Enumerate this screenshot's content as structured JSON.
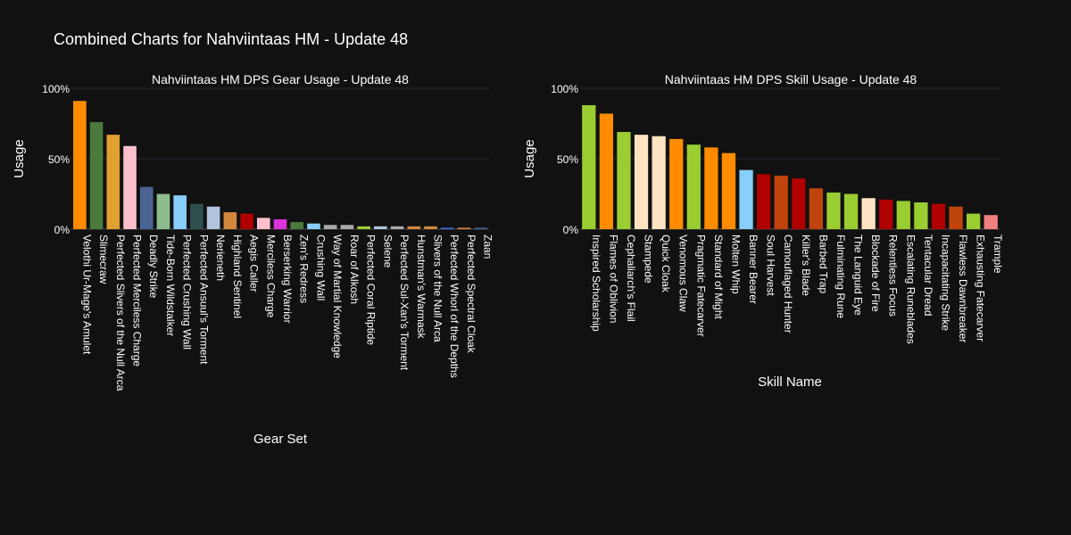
{
  "page_title": "Combined Charts for Nahviintaas HM - Update 48",
  "chart_data": [
    {
      "type": "bar",
      "title": "Nahviintaas HM DPS Gear Usage - Update 48",
      "xlabel": "Gear Set",
      "ylabel": "Usage",
      "ylim": [
        0,
        100
      ],
      "yticks": [
        0,
        50,
        100
      ],
      "ytick_labels": [
        "0%",
        "50%",
        "100%"
      ],
      "grid": true,
      "categories": [
        "Velothi Ur-Mage's Amulet",
        "Slimecraw",
        "Perfected Slivers of the Null Arca",
        "Perfected Merciless Charge",
        "Deadly Strike",
        "Tide-Born Wildstalker",
        "Perfected Crushing Wall",
        "Perfected Ansuul's Torment",
        "Nerieneth",
        "Highland Sentinel",
        "Aegis Caller",
        "Merciless Charge",
        "Berserking Warrior",
        "Zen's Redress",
        "Crushing Wall",
        "Way of Martial Knowledge",
        "Roar of Alkosh",
        "Perfected Coral Riptide",
        "Selene",
        "Perfected Sul-Xan's Torment",
        "Hunstman's Warmask",
        "Slivers of the Null Arca",
        "Perfected Whorl of the Depths",
        "Perfected Spectral Cloak",
        "Zaan"
      ],
      "values": [
        91,
        76,
        67,
        59,
        30,
        25,
        24,
        18,
        16,
        12,
        11,
        8,
        7,
        5,
        4,
        3,
        3,
        2,
        2,
        2,
        2,
        2,
        1,
        1,
        1
      ],
      "colors": [
        "#ff8c00",
        "#4a7a3d",
        "#e0a030",
        "#ffc0cb",
        "#4a6494",
        "#8fbc8f",
        "#87cefa",
        "#2f4f4f",
        "#b0c4de",
        "#d2873c",
        "#b00000",
        "#ffc0cb",
        "#da33da",
        "#4a7a3d",
        "#87cefa",
        "#a9a9a9",
        "#a9a9a9",
        "#9acd32",
        "#b0c4de",
        "#a9a9a9",
        "#d2873c",
        "#d2873c",
        "#4169e1",
        "#d2873c",
        "#4a6494"
      ]
    },
    {
      "type": "bar",
      "title": "Nahviintaas HM DPS Skill Usage - Update 48",
      "xlabel": "Skill Name",
      "ylabel": "Usage",
      "ylim": [
        0,
        100
      ],
      "yticks": [
        0,
        50,
        100
      ],
      "ytick_labels": [
        "0%",
        "50%",
        "100%"
      ],
      "grid": true,
      "categories": [
        "Inspired Scholarship",
        "Flames of Oblivion",
        "Cephaliarch's Flail",
        "Stampede",
        "Quick Cloak",
        "Venomous Claw",
        "Pragmatic Fatecarver",
        "Standard of Might",
        "Molten Whip",
        "Banner Bearer",
        "Soul Harvest",
        "Camouflaged Hunter",
        "Killer's Blade",
        "Barbed Trap",
        "Fulminating Rune",
        "The Languid Eye",
        "Blockade of Fire",
        "Relentless Focus",
        "Escalating Runeblades",
        "Tentacular Dread",
        "Incapacitating Strike",
        "Flawless Dawnbreaker",
        "Exhausting Fatecarver",
        "Trample"
      ],
      "values": [
        88,
        82,
        69,
        67,
        66,
        64,
        60,
        58,
        54,
        42,
        39,
        38,
        36,
        29,
        26,
        25,
        22,
        21,
        20,
        19,
        18,
        16,
        11,
        10
      ],
      "colors": [
        "#9acd32",
        "#ff8c00",
        "#9acd32",
        "#ffe4c4",
        "#ffe4c4",
        "#ff8c00",
        "#9acd32",
        "#ff8c00",
        "#ff8c00",
        "#87cefa",
        "#b00000",
        "#c0440c",
        "#b00000",
        "#c0440c",
        "#9acd32",
        "#9acd32",
        "#ffe4c4",
        "#b00000",
        "#9acd32",
        "#9acd32",
        "#b00000",
        "#c0440c",
        "#9acd32",
        "#f08080"
      ]
    }
  ]
}
